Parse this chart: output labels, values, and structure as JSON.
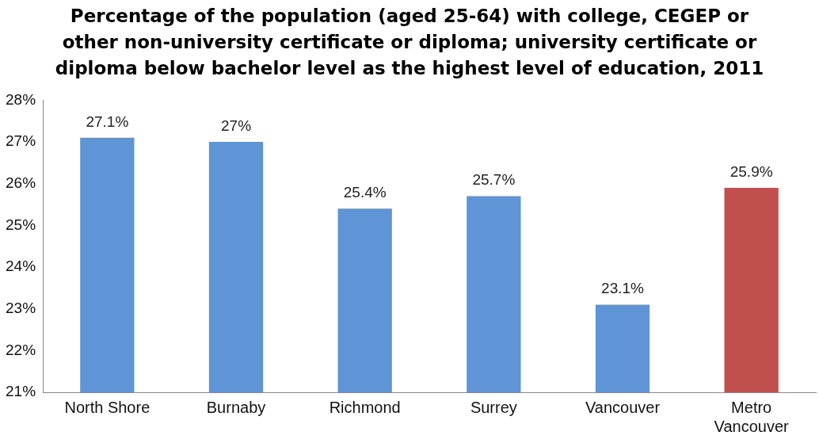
{
  "chart_data": {
    "type": "bar",
    "title": "Percentage of the population (aged 25-64) with college, CEGEP or other non-university certificate or diploma;  university certificate or diploma below bachelor level as the highest level of education, 2011",
    "categories": [
      "North Shore",
      "Burnaby",
      "Richmond",
      "Surrey",
      "Vancouver",
      "Metro Vancouver"
    ],
    "values": [
      27.1,
      27,
      25.4,
      25.7,
      23.1,
      25.9
    ],
    "colors": [
      "#5f95d6",
      "#5f95d6",
      "#5f95d6",
      "#5f95d6",
      "#5f95d6",
      "#c0504d"
    ],
    "value_labels": [
      "27.1%",
      "27%",
      "25.4%",
      "25.7%",
      "23.1%",
      "25.9%"
    ],
    "ylim": [
      21,
      28
    ],
    "yticks": [
      {
        "value": 21,
        "label": "21%"
      },
      {
        "value": 22,
        "label": "22%"
      },
      {
        "value": 23,
        "label": "23%"
      },
      {
        "value": 24,
        "label": "24%"
      },
      {
        "value": 25,
        "label": "25%"
      },
      {
        "value": 26,
        "label": "26%"
      },
      {
        "value": 27,
        "label": "27%"
      },
      {
        "value": 28,
        "label": "28%"
      }
    ],
    "grid": false,
    "legend": false
  }
}
